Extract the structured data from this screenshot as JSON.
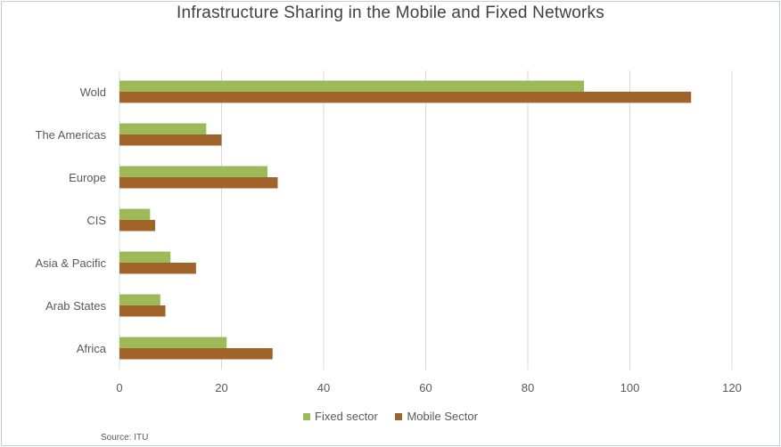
{
  "chart_data": {
    "type": "bar",
    "orientation": "horizontal",
    "title": "Infrastructure Sharing in the Mobile and Fixed Networks",
    "categories": [
      "Wold",
      "The Americas",
      "Europe",
      "CIS",
      "Asia & Pacific",
      "Arab States",
      "Africa"
    ],
    "series": [
      {
        "name": "Fixed sector",
        "color": "#9bbb59",
        "values": [
          91,
          17,
          29,
          6,
          10,
          8,
          21
        ]
      },
      {
        "name": "Mobile Sector",
        "color": "#a0632a",
        "values": [
          112,
          20,
          31,
          7,
          15,
          9,
          30
        ]
      }
    ],
    "xlim": [
      0,
      120
    ],
    "xticks": [
      0,
      20,
      40,
      60,
      80,
      100,
      120
    ],
    "grid": true,
    "legend_position": "bottom",
    "source": "Source: ITU"
  }
}
